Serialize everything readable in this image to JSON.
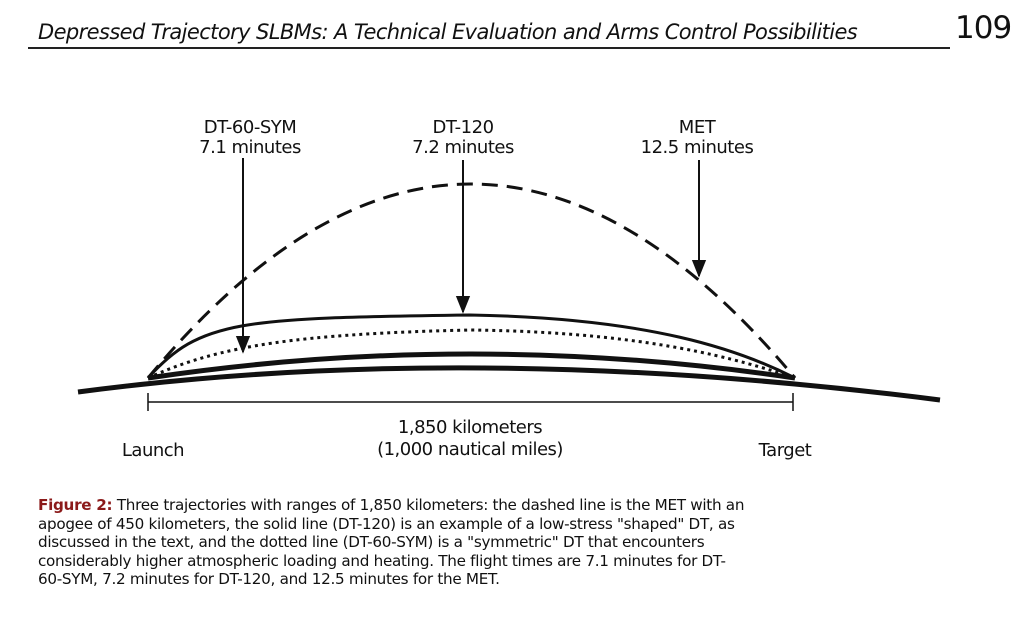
{
  "header": {
    "title": "Depressed Trajectory SLBMs: A Technical Evaluation and Arms Control Possibilities",
    "page_number": "109"
  },
  "figure": {
    "trajectories": [
      {
        "name": "DT-60-SYM",
        "time": "7.1 minutes"
      },
      {
        "name": "DT-120",
        "time": "7.2 minutes"
      },
      {
        "name": "MET",
        "time": "12.5 minutes"
      }
    ],
    "range": {
      "distance": "1,850 kilometers",
      "nautical": "(1,000 nautical miles)"
    },
    "launch": "Launch",
    "target": "Target"
  },
  "caption": {
    "label": "Figure 2:",
    "lines": [
      "Three trajectories with ranges of 1,850 kilometers: the dashed line is the MET with an",
      "apogee of 450 kilometers, the solid line (DT-120) is an example of a low-stress \"shaped\" DT, as",
      "discussed in the text, and the dotted line (DT-60-SYM) is a \"symmetric\" DT that encounters",
      "considerably higher atmospheric loading and heating. The flight times are 7.1 minutes for DT-",
      "60-SYM, 7.2 minutes for DT-120, and 12.5 minutes for the MET."
    ]
  }
}
